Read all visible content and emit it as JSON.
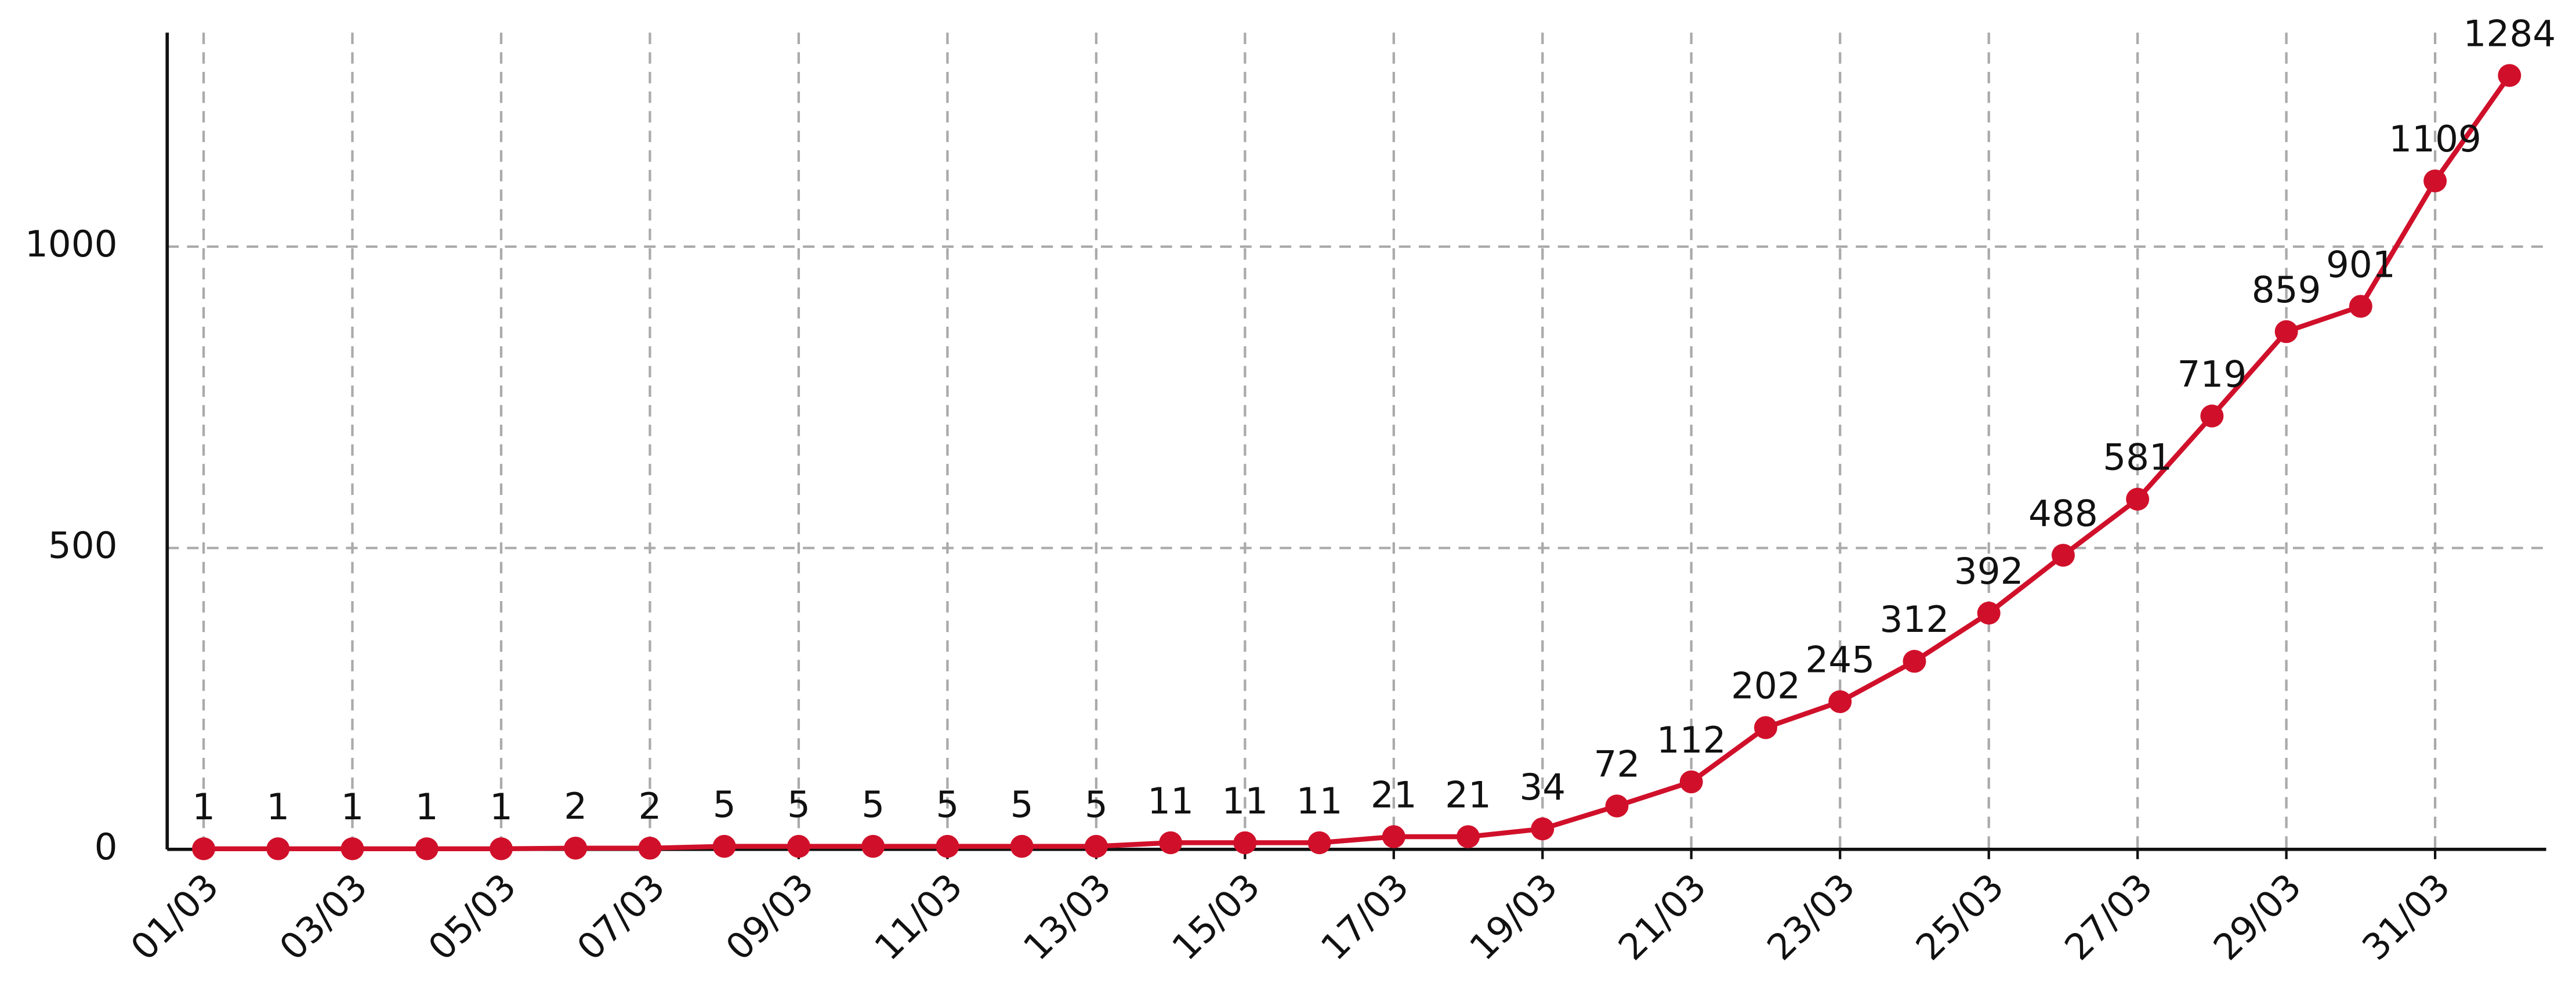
{
  "chart_data": {
    "type": "line",
    "categories": [
      "01/03",
      null,
      "03/03",
      null,
      "05/03",
      null,
      "07/03",
      null,
      "09/03",
      null,
      "11/03",
      null,
      "13/03",
      null,
      "15/03",
      null,
      "17/03",
      null,
      "19/03",
      null,
      "21/03",
      null,
      "23/03",
      null,
      "25/03",
      null,
      "27/03",
      null,
      "29/03",
      null,
      "31/03",
      null
    ],
    "series": [
      {
        "name": null,
        "color": "#d0102a",
        "values": [
          1,
          1,
          1,
          1,
          1,
          2,
          2,
          5,
          5,
          5,
          5,
          5,
          5,
          11,
          11,
          11,
          21,
          21,
          34,
          72,
          112,
          202,
          245,
          312,
          392,
          488,
          581,
          719,
          859,
          901,
          1109,
          1284
        ]
      }
    ],
    "ylim": [
      0,
      1355
    ],
    "yticks": [
      0,
      500,
      1000
    ],
    "grid": true,
    "data_labels": true
  }
}
